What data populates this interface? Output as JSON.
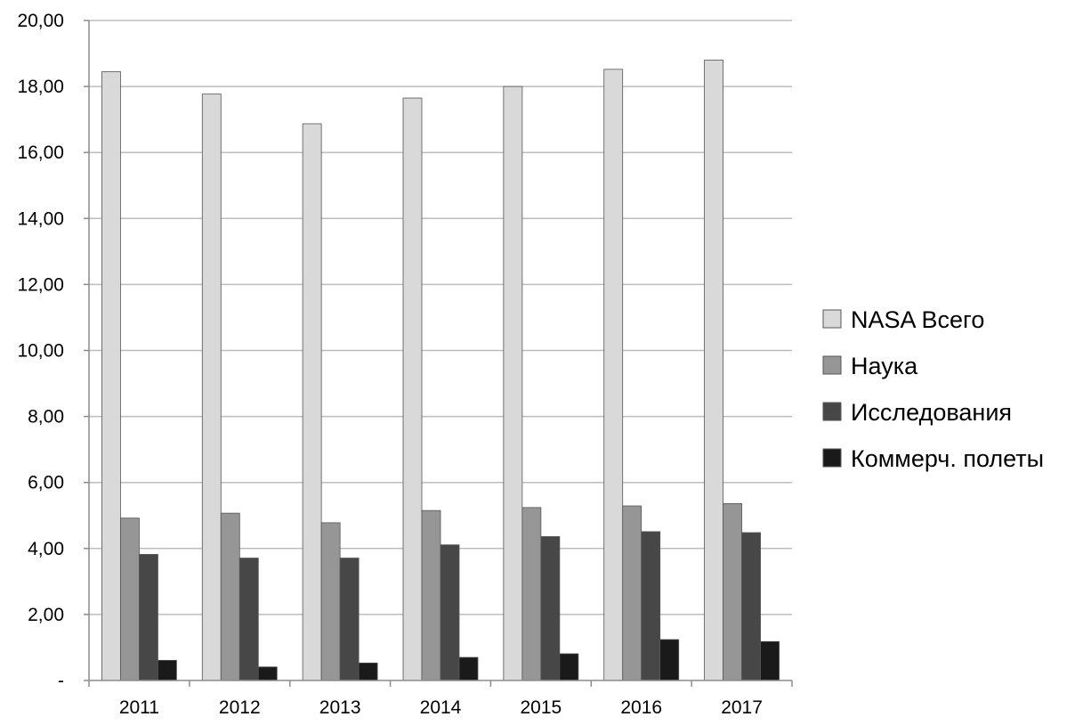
{
  "chart_data": {
    "type": "bar",
    "title": "",
    "xlabel": "",
    "ylabel": "",
    "categories": [
      "2011",
      "2012",
      "2013",
      "2014",
      "2015",
      "2016",
      "2017"
    ],
    "series": [
      {
        "name": "NASA Всего",
        "color": "#d9d9d9",
        "values": [
          18.45,
          17.77,
          16.87,
          17.65,
          18.0,
          18.52,
          18.8
        ]
      },
      {
        "name": "Наука",
        "color": "#969696",
        "values": [
          4.92,
          5.07,
          4.78,
          5.15,
          5.24,
          5.29,
          5.36
        ]
      },
      {
        "name": "Исследования",
        "color": "#474747",
        "values": [
          3.82,
          3.71,
          3.71,
          4.11,
          4.36,
          4.51,
          4.48
        ]
      },
      {
        "name": "Коммерч. полеты",
        "color": "#1a1a1a",
        "values": [
          0.61,
          0.41,
          0.53,
          0.7,
          0.81,
          1.24,
          1.18
        ]
      }
    ],
    "ylim": [
      0,
      20
    ],
    "y_ticks": [
      "-",
      "2,00",
      "4,00",
      "6,00",
      "8,00",
      "10,00",
      "12,00",
      "14,00",
      "16,00",
      "18,00",
      "20,00"
    ],
    "grid": true,
    "legend_position": "right"
  }
}
